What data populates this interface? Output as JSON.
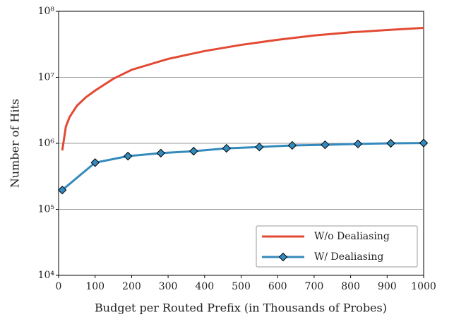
{
  "chart_data": {
    "type": "line",
    "xlabel": "Budget per Routed Prefix (in Thousands of Probes)",
    "ylabel": "Number of Hits",
    "xlim": [
      0,
      1000
    ],
    "xticks": [
      0,
      100,
      200,
      300,
      400,
      500,
      600,
      700,
      800,
      900,
      1000
    ],
    "ylim": [
      10000,
      100000000
    ],
    "log_y": true,
    "grid": true,
    "legend": "lower right",
    "yticks": [
      {
        "value": 10000,
        "label": "10⁴"
      },
      {
        "value": 100000,
        "label": "10⁵"
      },
      {
        "value": 1000000,
        "label": "10⁶"
      },
      {
        "value": 10000000,
        "label": "10⁷"
      },
      {
        "value": 100000000,
        "label": "10⁸"
      }
    ],
    "series": [
      {
        "name": "W/o Dealiasing",
        "color": "#e24a33",
        "marker": false,
        "x": [
          10,
          20,
          30,
          50,
          75,
          100,
          150,
          200,
          300,
          400,
          500,
          600,
          700,
          800,
          900,
          1000
        ],
        "values": [
          780000,
          1800000,
          2500000,
          3700000,
          5000000,
          6300000,
          9500000,
          13000000,
          19000000,
          25000000,
          31000000,
          37000000,
          43000000,
          48000000,
          52000000,
          56000000
        ]
      },
      {
        "name": "W/ Dealiasing",
        "color": "#348abd",
        "marker": true,
        "x": [
          10,
          100,
          190,
          280,
          370,
          460,
          550,
          640,
          730,
          820,
          910,
          1000
        ],
        "values": [
          196000,
          510000,
          640000,
          710000,
          760000,
          840000,
          880000,
          930000,
          950000,
          980000,
          1000000,
          1010000
        ]
      }
    ]
  }
}
